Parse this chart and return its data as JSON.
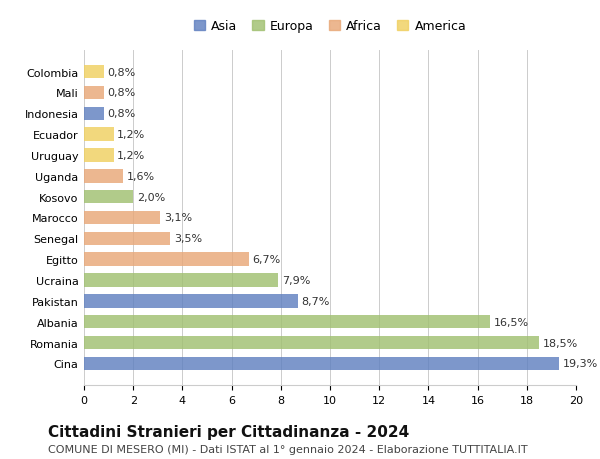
{
  "categories": [
    "Cina",
    "Romania",
    "Albania",
    "Pakistan",
    "Ucraina",
    "Egitto",
    "Senegal",
    "Marocco",
    "Kosovo",
    "Uganda",
    "Uruguay",
    "Ecuador",
    "Indonesia",
    "Mali",
    "Colombia"
  ],
  "values": [
    19.3,
    18.5,
    16.5,
    8.7,
    7.9,
    6.7,
    3.5,
    3.1,
    2.0,
    1.6,
    1.2,
    1.2,
    0.8,
    0.8,
    0.8
  ],
  "labels": [
    "19,3%",
    "18,5%",
    "16,5%",
    "8,7%",
    "7,9%",
    "6,7%",
    "3,5%",
    "3,1%",
    "2,0%",
    "1,6%",
    "1,2%",
    "1,2%",
    "0,8%",
    "0,8%",
    "0,8%"
  ],
  "continents": [
    "Asia",
    "Europa",
    "Europa",
    "Asia",
    "Europa",
    "Africa",
    "Africa",
    "Africa",
    "Europa",
    "Africa",
    "America",
    "America",
    "Asia",
    "Africa",
    "America"
  ],
  "continent_colors": {
    "Asia": "#6080c0",
    "Europa": "#a0c070",
    "Africa": "#e8a878",
    "America": "#f0d060"
  },
  "legend_order": [
    "Asia",
    "Europa",
    "Africa",
    "America"
  ],
  "title": "Cittadini Stranieri per Cittadinanza - 2024",
  "subtitle": "COMUNE DI MESERO (MI) - Dati ISTAT al 1° gennaio 2024 - Elaborazione TUTTITALIA.IT",
  "xlim": [
    0,
    20
  ],
  "xticks": [
    0,
    2,
    4,
    6,
    8,
    10,
    12,
    14,
    16,
    18,
    20
  ],
  "background_color": "#ffffff",
  "grid_color": "#cccccc",
  "title_fontsize": 11,
  "subtitle_fontsize": 8,
  "bar_label_fontsize": 8,
  "axis_label_fontsize": 8,
  "legend_fontsize": 9
}
